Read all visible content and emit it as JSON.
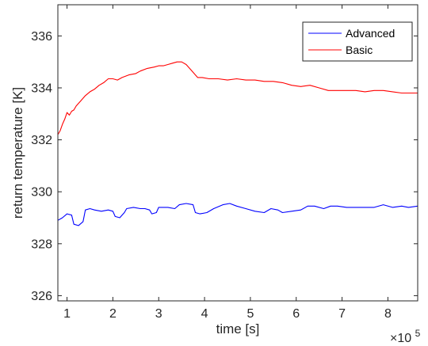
{
  "chart_data": {
    "type": "line",
    "xlabel": "time [s]",
    "ylabel": "return temperature [K]",
    "x_exponent_label": "×10",
    "x_exponent_power": "5",
    "xlim": [
      80000,
      865000
    ],
    "ylim": [
      325.8,
      337.2
    ],
    "x_ticks": [
      100000,
      200000,
      300000,
      400000,
      500000,
      600000,
      700000,
      800000
    ],
    "x_tick_labels": [
      "1",
      "2",
      "3",
      "4",
      "5",
      "6",
      "7",
      "8"
    ],
    "y_ticks": [
      326,
      328,
      330,
      332,
      334,
      336
    ],
    "y_tick_labels": [
      "326",
      "328",
      "330",
      "332",
      "334",
      "336"
    ],
    "grid": false,
    "legend_position": "top-right",
    "series": [
      {
        "name": "Advanced",
        "color": "#0000ff",
        "points": [
          [
            80000,
            328.9
          ],
          [
            90000,
            329.0
          ],
          [
            100000,
            329.15
          ],
          [
            110000,
            329.1
          ],
          [
            115000,
            328.75
          ],
          [
            125000,
            328.7
          ],
          [
            135000,
            328.85
          ],
          [
            140000,
            329.3
          ],
          [
            150000,
            329.35
          ],
          [
            160000,
            329.3
          ],
          [
            175000,
            329.25
          ],
          [
            190000,
            329.3
          ],
          [
            200000,
            329.25
          ],
          [
            205000,
            329.05
          ],
          [
            215000,
            329.0
          ],
          [
            225000,
            329.2
          ],
          [
            230000,
            329.35
          ],
          [
            245000,
            329.4
          ],
          [
            260000,
            329.35
          ],
          [
            270000,
            329.35
          ],
          [
            280000,
            329.3
          ],
          [
            285000,
            329.15
          ],
          [
            295000,
            329.2
          ],
          [
            300000,
            329.4
          ],
          [
            320000,
            329.4
          ],
          [
            335000,
            329.35
          ],
          [
            345000,
            329.5
          ],
          [
            360000,
            329.55
          ],
          [
            375000,
            329.5
          ],
          [
            380000,
            329.2
          ],
          [
            390000,
            329.15
          ],
          [
            405000,
            329.2
          ],
          [
            420000,
            329.35
          ],
          [
            440000,
            329.5
          ],
          [
            455000,
            329.55
          ],
          [
            470000,
            329.45
          ],
          [
            490000,
            329.35
          ],
          [
            510000,
            329.25
          ],
          [
            530000,
            329.2
          ],
          [
            545000,
            329.35
          ],
          [
            560000,
            329.3
          ],
          [
            570000,
            329.2
          ],
          [
            590000,
            329.25
          ],
          [
            610000,
            329.3
          ],
          [
            625000,
            329.45
          ],
          [
            640000,
            329.45
          ],
          [
            660000,
            329.35
          ],
          [
            675000,
            329.45
          ],
          [
            690000,
            329.45
          ],
          [
            710000,
            329.4
          ],
          [
            730000,
            329.4
          ],
          [
            750000,
            329.4
          ],
          [
            770000,
            329.4
          ],
          [
            790000,
            329.5
          ],
          [
            810000,
            329.4
          ],
          [
            830000,
            329.45
          ],
          [
            845000,
            329.4
          ],
          [
            865000,
            329.45
          ]
        ]
      },
      {
        "name": "Basic",
        "color": "#ff0000",
        "points": [
          [
            80000,
            332.2
          ],
          [
            85000,
            332.35
          ],
          [
            90000,
            332.6
          ],
          [
            95000,
            332.8
          ],
          [
            100000,
            333.05
          ],
          [
            105000,
            332.95
          ],
          [
            110000,
            333.1
          ],
          [
            115000,
            333.15
          ],
          [
            120000,
            333.3
          ],
          [
            130000,
            333.5
          ],
          [
            140000,
            333.7
          ],
          [
            150000,
            333.85
          ],
          [
            160000,
            333.95
          ],
          [
            170000,
            334.1
          ],
          [
            180000,
            334.2
          ],
          [
            190000,
            334.35
          ],
          [
            200000,
            334.35
          ],
          [
            210000,
            334.3
          ],
          [
            220000,
            334.4
          ],
          [
            235000,
            334.5
          ],
          [
            250000,
            334.55
          ],
          [
            260000,
            334.65
          ],
          [
            275000,
            334.75
          ],
          [
            290000,
            334.8
          ],
          [
            300000,
            334.85
          ],
          [
            310000,
            334.85
          ],
          [
            320000,
            334.9
          ],
          [
            330000,
            334.95
          ],
          [
            340000,
            335.0
          ],
          [
            350000,
            335.0
          ],
          [
            360000,
            334.9
          ],
          [
            370000,
            334.7
          ],
          [
            380000,
            334.5
          ],
          [
            385000,
            334.4
          ],
          [
            395000,
            334.4
          ],
          [
            410000,
            334.35
          ],
          [
            430000,
            334.35
          ],
          [
            450000,
            334.3
          ],
          [
            470000,
            334.35
          ],
          [
            490000,
            334.3
          ],
          [
            510000,
            334.3
          ],
          [
            530000,
            334.25
          ],
          [
            550000,
            334.25
          ],
          [
            570000,
            334.2
          ],
          [
            590000,
            334.1
          ],
          [
            610000,
            334.05
          ],
          [
            630000,
            334.1
          ],
          [
            650000,
            334.0
          ],
          [
            670000,
            333.9
          ],
          [
            690000,
            333.9
          ],
          [
            710000,
            333.9
          ],
          [
            730000,
            333.9
          ],
          [
            750000,
            333.85
          ],
          [
            770000,
            333.9
          ],
          [
            790000,
            333.9
          ],
          [
            810000,
            333.85
          ],
          [
            830000,
            333.8
          ],
          [
            850000,
            333.8
          ],
          [
            865000,
            333.8
          ]
        ]
      }
    ]
  }
}
